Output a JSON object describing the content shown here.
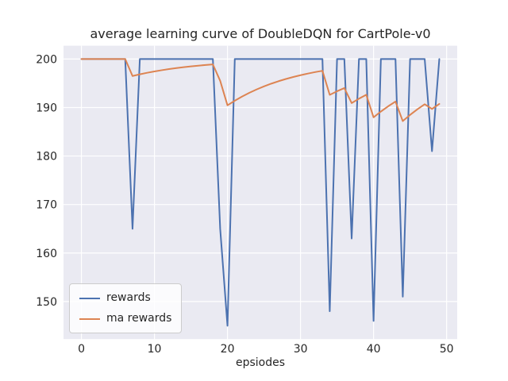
{
  "figure": {
    "background": "#ffffff"
  },
  "chart_data": {
    "type": "line",
    "title": "average learning curve of DoubleDQN for CartPole-v0",
    "xlabel": "epsiodes",
    "ylabel": "",
    "x": [
      0,
      1,
      2,
      3,
      4,
      5,
      6,
      7,
      8,
      9,
      10,
      11,
      12,
      13,
      14,
      15,
      16,
      17,
      18,
      19,
      20,
      21,
      22,
      23,
      24,
      25,
      26,
      27,
      28,
      29,
      30,
      31,
      32,
      33,
      34,
      35,
      36,
      37,
      38,
      39,
      40,
      41,
      42,
      43,
      44,
      45,
      46,
      47,
      48,
      49
    ],
    "series": [
      {
        "name": "rewards",
        "color": "#4c72b0",
        "values": [
          200,
          200,
          200,
          200,
          200,
          200,
          200,
          165,
          200,
          200,
          200,
          200,
          200,
          200,
          200,
          200,
          200,
          200,
          200,
          165,
          145,
          200,
          200,
          200,
          200,
          200,
          200,
          200,
          200,
          200,
          200,
          200,
          200,
          200,
          148,
          200,
          200,
          163,
          200,
          200,
          146,
          200,
          200,
          200,
          151,
          200,
          200,
          200,
          181,
          200
        ]
      },
      {
        "name": "ma rewards",
        "color": "#dd8452",
        "values": [
          200,
          200,
          200,
          200,
          200,
          200,
          200,
          196.5,
          196.85,
          197.17,
          197.45,
          197.7,
          197.93,
          198.14,
          198.33,
          198.49,
          198.64,
          198.78,
          198.9,
          195.51,
          190.46,
          191.41,
          192.27,
          193.05,
          193.74,
          194.37,
          194.93,
          195.44,
          195.89,
          196.3,
          196.67,
          197.01,
          197.31,
          197.58,
          192.62,
          193.36,
          194.02,
          190.92,
          191.83,
          192.64,
          187.98,
          189.18,
          190.26,
          191.24,
          187.21,
          188.49,
          189.64,
          190.68,
          189.71,
          190.74
        ]
      }
    ],
    "xlim": [
      -2.45,
      51.45
    ],
    "ylim": [
      142.25,
      202.75
    ],
    "xticks": [
      0,
      10,
      20,
      30,
      40,
      50
    ],
    "yticks": [
      150,
      160,
      170,
      180,
      190,
      200
    ],
    "grid": true,
    "legend_position": "lower left",
    "plot_bg": "#eaeaf2",
    "grid_color": "#ffffff"
  }
}
